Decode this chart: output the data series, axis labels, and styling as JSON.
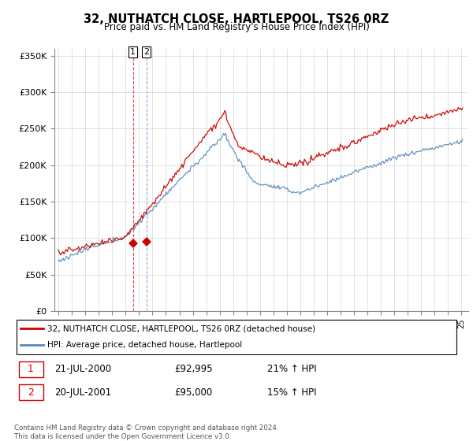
{
  "title": "32, NUTHATCH CLOSE, HARTLEPOOL, TS26 0RZ",
  "subtitle": "Price paid vs. HM Land Registry's House Price Index (HPI)",
  "legend_line1": "32, NUTHATCH CLOSE, HARTLEPOOL, TS26 0RZ (detached house)",
  "legend_line2": "HPI: Average price, detached house, Hartlepool",
  "transaction1_date": "21-JUL-2000",
  "transaction1_price": "£92,995",
  "transaction1_hpi": "21% ↑ HPI",
  "transaction2_date": "20-JUL-2001",
  "transaction2_price": "£95,000",
  "transaction2_hpi": "15% ↑ HPI",
  "footer": "Contains HM Land Registry data © Crown copyright and database right 2024.\nThis data is licensed under the Open Government Licence v3.0.",
  "red_color": "#cc0000",
  "blue_color": "#5588bb",
  "ylim": [
    0,
    360000
  ],
  "ytick_values": [
    0,
    50000,
    100000,
    150000,
    200000,
    250000,
    300000,
    350000
  ],
  "ytick_labels": [
    "£0",
    "£50K",
    "£100K",
    "£150K",
    "£200K",
    "£250K",
    "£300K",
    "£350K"
  ],
  "year_start": 1995,
  "year_end": 2025
}
